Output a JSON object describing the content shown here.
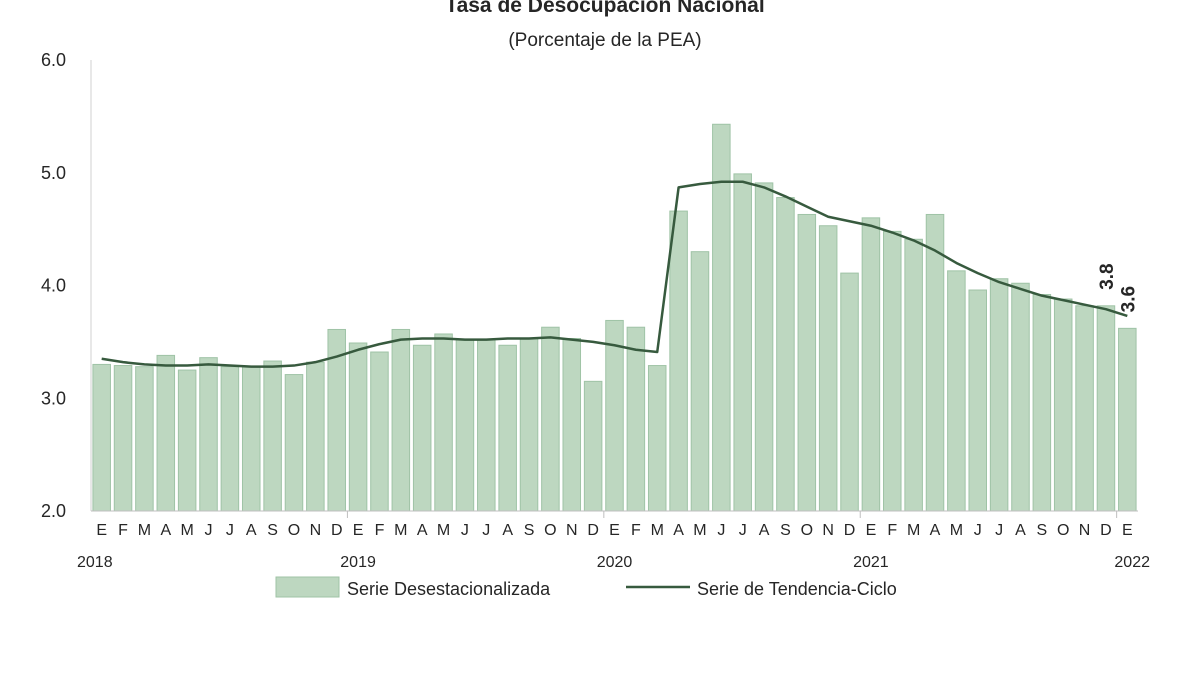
{
  "chart_data": {
    "type": "bar",
    "title": "Tasa de Desocupación Nacional",
    "subtitle": "(Porcentaje de la PEA)",
    "ylim": [
      2.0,
      6.0
    ],
    "yticks": [
      "2.0",
      "3.0",
      "4.0",
      "5.0",
      "6.0"
    ],
    "month_labels": [
      "E",
      "F",
      "M",
      "A",
      "M",
      "J",
      "J",
      "A",
      "S",
      "O",
      "N",
      "D",
      "E",
      "F",
      "M",
      "A",
      "M",
      "J",
      "J",
      "A",
      "S",
      "O",
      "N",
      "D",
      "E",
      "F",
      "M",
      "A",
      "M",
      "J",
      "J",
      "A",
      "S",
      "O",
      "N",
      "D",
      "E",
      "F",
      "M",
      "A",
      "M",
      "J",
      "J",
      "A",
      "S",
      "O",
      "N",
      "D",
      "E"
    ],
    "years": [
      {
        "label": "2018",
        "month_index": 0
      },
      {
        "label": "2019",
        "month_index": 12
      },
      {
        "label": "2020",
        "month_index": 24
      },
      {
        "label": "2021",
        "month_index": 36
      },
      {
        "label": "2022",
        "month_index": 48
      }
    ],
    "grid": false,
    "legend_position": "bottom",
    "series": [
      {
        "name": "Serie Desestacionalizada",
        "kind": "bar",
        "color": "#bdd7c0",
        "values": [
          3.3,
          3.29,
          3.28,
          3.38,
          3.25,
          3.36,
          3.28,
          3.28,
          3.33,
          3.21,
          3.32,
          3.61,
          3.49,
          3.41,
          3.61,
          3.47,
          3.57,
          3.52,
          3.52,
          3.47,
          3.53,
          3.63,
          3.53,
          3.15,
          3.69,
          3.63,
          3.29,
          4.66,
          4.3,
          5.43,
          4.99,
          4.91,
          4.78,
          4.63,
          4.53,
          4.11,
          4.6,
          4.48,
          4.41,
          4.63,
          4.13,
          3.96,
          4.06,
          4.02,
          3.92,
          3.88,
          3.82,
          3.82,
          3.62
        ]
      },
      {
        "name": "Serie de Tendencia-Ciclo",
        "kind": "line",
        "color": "#375a3e",
        "values": [
          3.35,
          3.32,
          3.3,
          3.29,
          3.29,
          3.3,
          3.29,
          3.28,
          3.28,
          3.29,
          3.32,
          3.37,
          3.43,
          3.48,
          3.52,
          3.53,
          3.53,
          3.52,
          3.52,
          3.53,
          3.53,
          3.54,
          3.52,
          3.5,
          3.47,
          3.43,
          3.41,
          4.87,
          4.9,
          4.92,
          4.92,
          4.87,
          4.79,
          4.7,
          4.61,
          4.57,
          4.53,
          4.47,
          4.4,
          4.31,
          4.2,
          4.11,
          4.03,
          3.97,
          3.91,
          3.87,
          3.83,
          3.79,
          3.73
        ]
      }
    ],
    "annotations": [
      {
        "text": "3.8",
        "series": "Serie Desestacionalizada",
        "month_index": 47
      },
      {
        "text": "3.6",
        "series": "Serie Desestacionalizada",
        "month_index": 48
      }
    ]
  }
}
